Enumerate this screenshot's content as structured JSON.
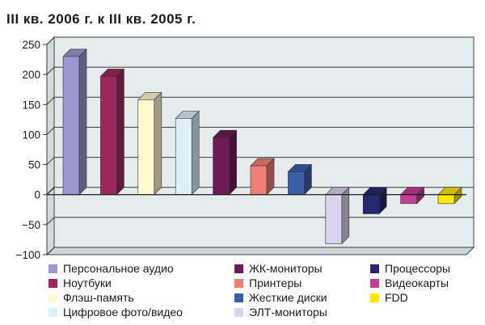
{
  "chart_data": {
    "type": "bar",
    "title": "III кв. 2006 г. к III кв. 2005 г.",
    "xlabel": "",
    "ylabel": "",
    "ylim": [
      -100,
      250
    ],
    "yticks": [
      -100,
      -50,
      0,
      50,
      100,
      150,
      200,
      250
    ],
    "grid": "horizontal",
    "three_d": true,
    "legend_position": "bottom",
    "series": [
      {
        "name": "Персональное аудио",
        "value": 230,
        "color": "#9b98cf"
      },
      {
        "name": "Ноутбуки",
        "value": 197,
        "color": "#99285c"
      },
      {
        "name": "Флэш-память",
        "value": 158,
        "color": "#fffad0"
      },
      {
        "name": "Цифровое фото/видео",
        "value": 127,
        "color": "#dcf2f9"
      },
      {
        "name": "ЖК-мониторы",
        "value": 95,
        "color": "#6e1a57"
      },
      {
        "name": "Принтеры",
        "value": 48,
        "color": "#ef7f75"
      },
      {
        "name": "Жесткие диски",
        "value": 38,
        "color": "#3b5ea9"
      },
      {
        "name": "ЭЛТ-мониторы",
        "value": -82,
        "color": "#d9d3ee"
      },
      {
        "name": "Процессоры",
        "value": -32,
        "color": "#262673"
      },
      {
        "name": "Видеокарты",
        "value": -15,
        "color": "#c23f95"
      },
      {
        "name": "FDD",
        "value": -15,
        "color": "#ffe800"
      }
    ]
  }
}
